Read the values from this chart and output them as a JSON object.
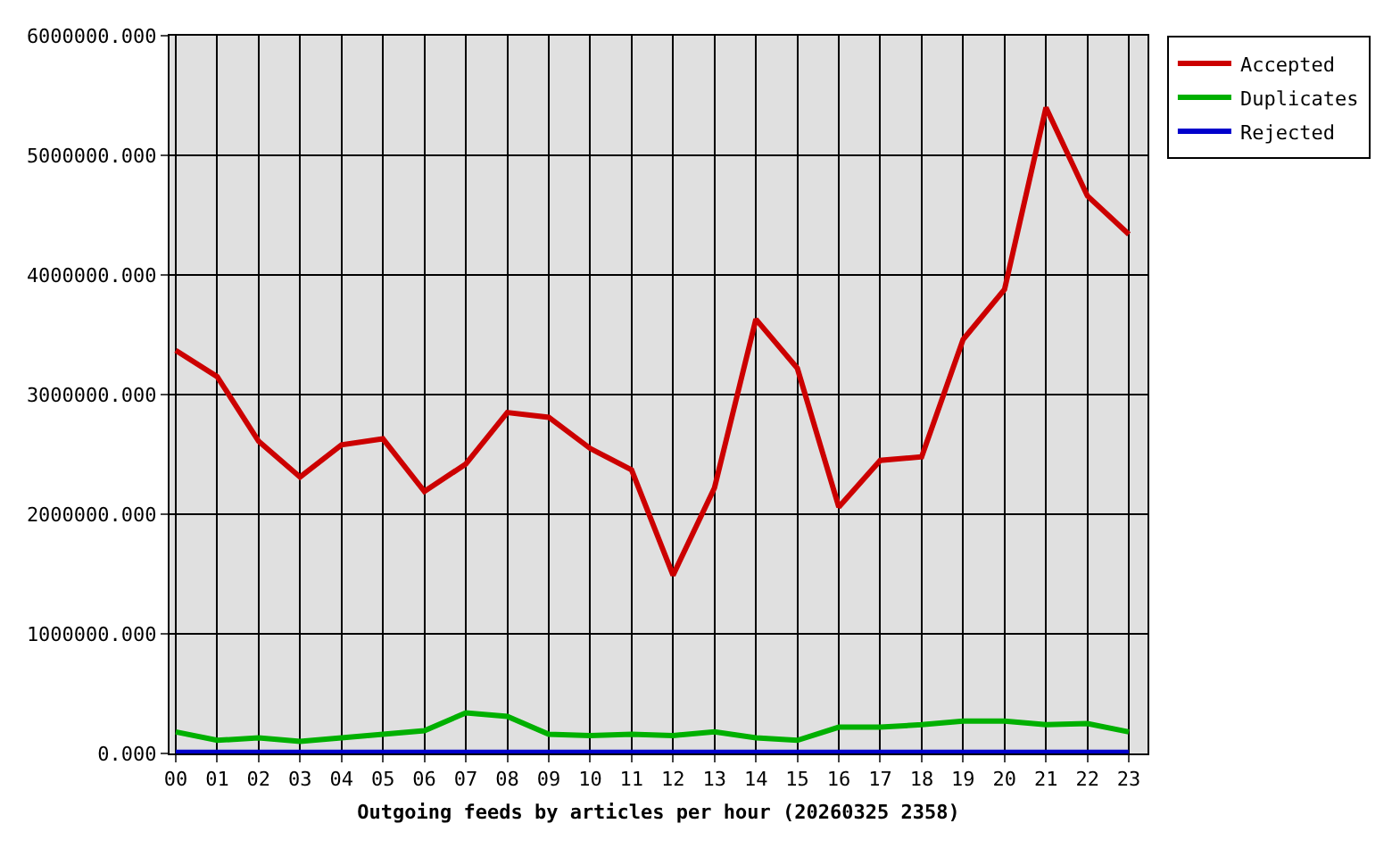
{
  "chart_data": {
    "type": "line",
    "xlabel": "Outgoing feeds by articles per hour (20260325 2358)",
    "categories": [
      "00",
      "01",
      "02",
      "03",
      "04",
      "05",
      "06",
      "07",
      "08",
      "09",
      "10",
      "11",
      "12",
      "13",
      "14",
      "15",
      "16",
      "17",
      "18",
      "19",
      "20",
      "21",
      "22",
      "23"
    ],
    "series": [
      {
        "name": "Accepted",
        "color": "#cc0000",
        "values": [
          3370000,
          3150000,
          2610000,
          2310000,
          2580000,
          2630000,
          2190000,
          2420000,
          2850000,
          2810000,
          2550000,
          2370000,
          1490000,
          2220000,
          3630000,
          3220000,
          2060000,
          2450000,
          2480000,
          3460000,
          3880000,
          5400000,
          4660000,
          4340000
        ]
      },
      {
        "name": "Duplicates",
        "color": "#00b000",
        "values": [
          180000,
          110000,
          130000,
          100000,
          130000,
          160000,
          190000,
          340000,
          310000,
          160000,
          150000,
          160000,
          150000,
          180000,
          130000,
          110000,
          220000,
          220000,
          240000,
          270000,
          270000,
          240000,
          250000,
          180000
        ]
      },
      {
        "name": "Rejected",
        "color": "#0000cc",
        "values": [
          10000,
          10000,
          10000,
          10000,
          10000,
          10000,
          10000,
          10000,
          10000,
          10000,
          10000,
          10000,
          10000,
          10000,
          10000,
          10000,
          10000,
          10000,
          10000,
          10000,
          10000,
          10000,
          10000,
          10000
        ]
      }
    ],
    "ylim": [
      0,
      6000000
    ],
    "yticks": [
      {
        "value": 0,
        "label": "0.000"
      },
      {
        "value": 1000000,
        "label": "1000000.000"
      },
      {
        "value": 2000000,
        "label": "2000000.000"
      },
      {
        "value": 3000000,
        "label": "3000000.000"
      },
      {
        "value": 4000000,
        "label": "4000000.000"
      },
      {
        "value": 5000000,
        "label": "5000000.000"
      },
      {
        "value": 6000000,
        "label": "6000000.000"
      }
    ],
    "grid": true,
    "legend": "top right",
    "line_style": "solid"
  }
}
